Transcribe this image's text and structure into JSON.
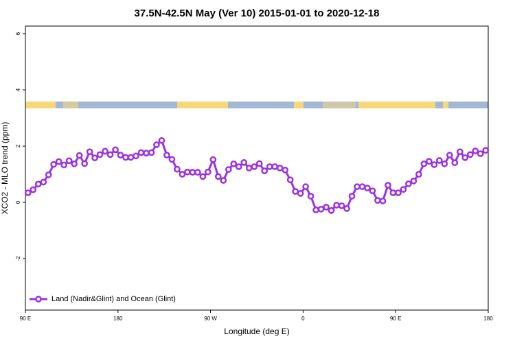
{
  "chart_data": {
    "type": "line",
    "title": "37.5N-42.5N May (Ver 10)   2015-01-01 to 2020-12-18",
    "xlabel": "Longitude (deg E)",
    "ylabel": "XCO2 - MLO trend (ppm)",
    "xlim": [
      90,
      540
    ],
    "xticks": [
      {
        "value": 90,
        "label": "90 E"
      },
      {
        "value": 180,
        "label": "180"
      },
      {
        "value": 270,
        "label": "90 W"
      },
      {
        "value": 360,
        "label": "0"
      },
      {
        "value": 450,
        "label": "90 E"
      },
      {
        "value": 540,
        "label": "180"
      }
    ],
    "ylim": [
      -3.83,
      6.27
    ],
    "yticks": [
      -2,
      0,
      2,
      4,
      6
    ],
    "legend": "bottom-left",
    "x": [
      92.5,
      97.5,
      102.5,
      107.5,
      112.5,
      117.5,
      122.5,
      127.5,
      132.5,
      137.5,
      142.5,
      147.5,
      152.5,
      157.5,
      162.5,
      167.5,
      172.5,
      177.5,
      182.5,
      187.5,
      192.5,
      197.5,
      202.5,
      207.5,
      212.5,
      217.5,
      222.5,
      227.5,
      232.5,
      237.5,
      242.5,
      247.5,
      252.5,
      257.5,
      262.5,
      267.5,
      272.5,
      277.5,
      282.5,
      287.5,
      292.5,
      297.5,
      302.5,
      307.5,
      312.5,
      317.5,
      322.5,
      327.5,
      332.5,
      337.5,
      342.5,
      347.5,
      352.5,
      357.5,
      362.5,
      367.5,
      372.5,
      377.5,
      382.5,
      387.5,
      392.5,
      397.5,
      402.5,
      407.5,
      412.5,
      417.5,
      422.5,
      427.5,
      432.5,
      437.5,
      442.5,
      447.5,
      452.5,
      457.5,
      462.5,
      467.5,
      472.5,
      477.5,
      482.5,
      487.5,
      492.5,
      497.5,
      502.5,
      507.5,
      512.5,
      517.5,
      522.5,
      527.5,
      532.5,
      537.5
    ],
    "series": [
      {
        "name": "Land (Nadir&Glint) and Ocean (Glint)",
        "color": "#9a32e0",
        "values": [
          0.34,
          0.45,
          0.65,
          0.72,
          0.98,
          1.35,
          1.45,
          1.33,
          1.48,
          1.37,
          1.67,
          1.38,
          1.8,
          1.58,
          1.7,
          1.82,
          1.7,
          1.87,
          1.68,
          1.6,
          1.6,
          1.65,
          1.77,
          1.75,
          1.77,
          2.05,
          2.2,
          1.68,
          1.53,
          1.18,
          1.0,
          1.08,
          1.07,
          1.07,
          0.92,
          1.08,
          1.52,
          0.92,
          0.78,
          1.17,
          1.37,
          1.27,
          1.42,
          1.22,
          1.27,
          1.38,
          1.12,
          1.27,
          1.27,
          1.22,
          1.15,
          0.8,
          0.39,
          0.32,
          0.56,
          0.22,
          -0.27,
          -0.24,
          -0.17,
          -0.29,
          -0.1,
          -0.12,
          -0.22,
          0.22,
          0.56,
          0.56,
          0.51,
          0.41,
          0.07,
          0.05,
          0.61,
          0.34,
          0.34,
          0.46,
          0.66,
          0.76,
          1.0,
          1.37,
          1.46,
          1.34,
          1.49,
          1.37,
          1.68,
          1.41,
          1.8,
          1.59,
          1.7,
          1.83,
          1.73,
          1.85
        ]
      }
    ]
  }
}
